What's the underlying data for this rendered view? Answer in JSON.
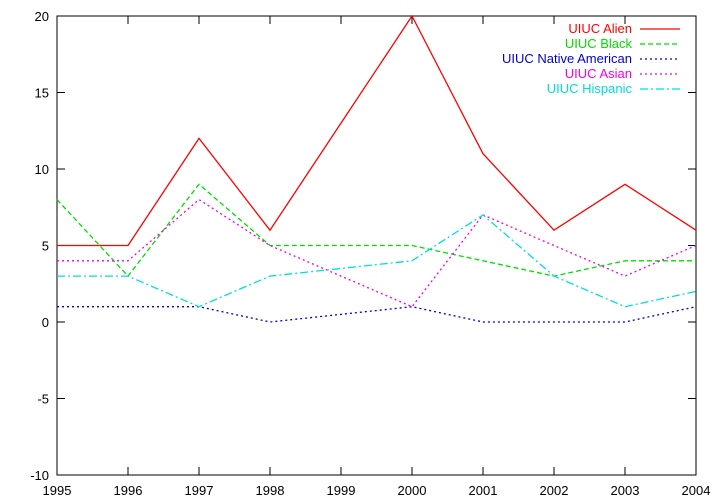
{
  "chart_data": {
    "type": "line",
    "title": "",
    "xlabel": "",
    "ylabel": "",
    "x": [
      1995,
      1996,
      1997,
      1998,
      1999,
      2000,
      2001,
      2002,
      2003,
      2004
    ],
    "x_ticks": [
      "1995",
      "1996",
      "1997",
      "1998",
      "1999",
      "2000",
      "2001",
      "2002",
      "2003",
      "2004"
    ],
    "y_ticks": [
      "-10",
      "-5",
      "0",
      "5",
      "10",
      "15",
      "20"
    ],
    "xlim": [
      1995,
      2004
    ],
    "ylim": [
      -10,
      20
    ],
    "grid": false,
    "legend_position": "top-right",
    "series": [
      {
        "name": "UIUC Alien",
        "color": "#ff0000",
        "dash": "solid",
        "values": [
          5,
          5,
          12,
          6,
          13,
          20,
          11,
          6,
          9,
          6
        ],
        "x": [
          1995,
          1996,
          1997,
          1998,
          1999,
          2000,
          2001,
          2002,
          2003,
          2004
        ]
      },
      {
        "name": "UIUC Black",
        "color": "#00dd00",
        "dash": "dashed",
        "values": [
          8,
          3,
          9,
          5,
          5,
          5,
          4,
          3,
          4,
          4
        ],
        "x": [
          1995,
          1996,
          1997,
          1998,
          1999,
          2000,
          2001,
          2002,
          2003,
          2004
        ]
      },
      {
        "name": "UIUC Native American",
        "color": "#0000cc",
        "dash": "dotted",
        "values": [
          1,
          1,
          1,
          0,
          1,
          0,
          0,
          0,
          1
        ],
        "x": [
          1995,
          1996,
          1997,
          1998,
          2000,
          2001,
          2002,
          2003,
          2004
        ]
      },
      {
        "name": "UIUC Asian",
        "color": "#ee00ee",
        "dash": "dotted",
        "values": [
          4,
          4,
          8,
          5,
          1,
          7,
          5,
          3,
          5
        ],
        "x": [
          1995,
          1996,
          1997,
          1998,
          2000,
          2001,
          2002,
          2003,
          2004
        ]
      },
      {
        "name": "UIUC Hispanic",
        "color": "#00dddd",
        "dash": "dashdot",
        "values": [
          3,
          3,
          1,
          3,
          4,
          7,
          3,
          1,
          2
        ],
        "x": [
          1995,
          1996,
          1997,
          1998,
          2000,
          2001,
          2002,
          2003,
          2004
        ]
      }
    ]
  }
}
